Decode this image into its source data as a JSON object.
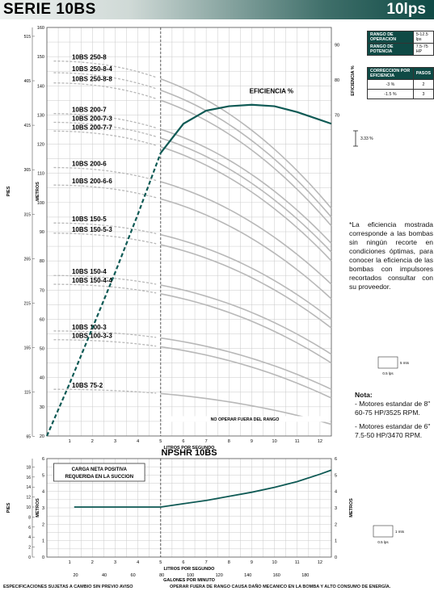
{
  "header": {
    "series": "SERIE 10BS",
    "flow": "10lps"
  },
  "table_ranges": [
    {
      "label": "RANGO DE OPERACION",
      "value": "5-12.5 lps"
    },
    {
      "label": "RANGO DE POTENCIA",
      "value": "7.5-75 HP"
    }
  ],
  "table_correction": {
    "headers": [
      "CORRECCION POR EFICIENCIA",
      "PASOS"
    ],
    "rows": [
      [
        "-3 %",
        "2"
      ],
      [
        "-1.5 %",
        "3"
      ]
    ]
  },
  "eff_scale_label": "3.33 %",
  "efficiency_note": "*La eficiencia mostrada corresponde a las bombas sin ningún recorte en condiciones óptimas, para conocer la eficiencia de las bombas con impulsores recortados consultar con su proveedor.",
  "scale_box_top": {
    "label_v": "5 mts",
    "label_h": "0.5 lps"
  },
  "scale_box_bottom": {
    "label_v": "1 mts",
    "label_h": "0.5 lps"
  },
  "nota": {
    "title": "Nota:",
    "lines": [
      "- Motores estandar de 8\" 60-75 HP/3525 RPM.",
      "- Motores estandar de 6\" 7.5-50 HP/3470 RPM."
    ]
  },
  "footer": {
    "left": "ESPECIFICACIONES SUJETAS A CAMBIO SIN PREVIO AVISO",
    "right": "OPERAR FUERA DE RANGO CAUSA DAÑO MECANICO EN LA BOMBA Y ALTO CONSUMO DE ENERGÍA."
  },
  "chart_data": [
    {
      "type": "line",
      "xlabel": "LITROS POR SEGUNDO",
      "ylabel_left": "METROS",
      "ylabel_outer": "PIES",
      "ylabel_right": "EFICIENCIA %",
      "xlim": [
        0,
        12.5
      ],
      "ylim": [
        20,
        160
      ],
      "x_ticks": [
        1,
        2,
        3,
        4,
        5,
        6,
        7,
        8,
        9,
        10,
        11,
        12
      ],
      "y_ticks": [
        20,
        30,
        40,
        50,
        60,
        70,
        80,
        90,
        100,
        110,
        120,
        130,
        140,
        150,
        160
      ],
      "feet_ticks": [
        65,
        115,
        165,
        215,
        265,
        315,
        365,
        415,
        465,
        515
      ],
      "eff_ticks": [
        {
          "value": 90,
          "y": 154
        },
        {
          "value": 80,
          "y": 142
        },
        {
          "value": 70,
          "y": 130
        }
      ],
      "annotation_range": "NO OPERAR FUERA DEL RANGO",
      "eff_label": "EFICIENCIA %",
      "min_flow_line": 5,
      "series": [
        {
          "name": "10BS 250-8",
          "shutoff": 148.5,
          "end": 98
        },
        {
          "name": "10BS 250-8-4",
          "shutoff": 144.5,
          "end": 95
        },
        {
          "name": "10BS 250-8-8",
          "shutoff": 141,
          "end": 92
        },
        {
          "name": "10BS 200-7",
          "shutoff": 130.5,
          "end": 86
        },
        {
          "name": "10BS 200-7-3",
          "shutoff": 127.5,
          "end": 83
        },
        {
          "name": "10BS 200-7-7",
          "shutoff": 124.5,
          "end": 80
        },
        {
          "name": "10BS 200-6",
          "shutoff": 112,
          "end": 72
        },
        {
          "name": "10BS 200-6-6",
          "shutoff": 106,
          "end": 67
        },
        {
          "name": "10BS 150-5",
          "shutoff": 93,
          "end": 60
        },
        {
          "name": "10BS 150-5-3",
          "shutoff": 89.5,
          "end": 57
        },
        {
          "name": "10BS 150-4",
          "shutoff": 75,
          "end": 48
        },
        {
          "name": "10BS 150-4-4",
          "shutoff": 72,
          "end": 45
        },
        {
          "name": "10BS 100-3",
          "shutoff": 56,
          "end": 36
        },
        {
          "name": "10BS 100-3-3",
          "shutoff": 53,
          "end": 33
        },
        {
          "name": "10BS 75-2",
          "shutoff": 36,
          "end": 24
        }
      ],
      "efficiency": [
        {
          "x": 0,
          "y": 20
        },
        {
          "x": 1,
          "y": 38
        },
        {
          "x": 2,
          "y": 57
        },
        {
          "x": 3,
          "y": 76
        },
        {
          "x": 4,
          "y": 96
        },
        {
          "x": 5,
          "y": 117
        },
        {
          "x": 6,
          "y": 127
        },
        {
          "x": 7,
          "y": 131.5
        },
        {
          "x": 8,
          "y": 133
        },
        {
          "x": 9,
          "y": 133.5
        },
        {
          "x": 10,
          "y": 133
        },
        {
          "x": 11,
          "y": 131
        },
        {
          "x": 12.5,
          "y": 127
        }
      ]
    },
    {
      "type": "line",
      "title": "NPSHR 10BS",
      "xlabel": "LITROS POR SEGUNDO",
      "x2label": "GALONES POR MINUTO",
      "ylabel_left": "METROS",
      "ylabel_outer": "PIES",
      "ylabel_right": "METROS",
      "box_label": [
        "CARGA NETA POSITIVA",
        "REQUERIDA EN LA SUCCION"
      ],
      "xlim": [
        0,
        12.5
      ],
      "ylim": [
        0,
        6
      ],
      "x_ticks": [
        1,
        2,
        3,
        4,
        5,
        6,
        7,
        8,
        9,
        10,
        11,
        12
      ],
      "y_ticks": [
        0,
        1,
        2,
        3,
        4,
        5,
        6
      ],
      "feet_ticks": [
        0,
        2,
        4,
        6,
        8,
        10,
        12,
        14,
        16,
        18
      ],
      "gpm_ticks": [
        20,
        40,
        60,
        80,
        100,
        120,
        140,
        160,
        180
      ],
      "npsh": [
        {
          "x": 1.2,
          "y": 3.05
        },
        {
          "x": 5,
          "y": 3.05
        },
        {
          "x": 6,
          "y": 3.25
        },
        {
          "x": 7,
          "y": 3.45
        },
        {
          "x": 8,
          "y": 3.7
        },
        {
          "x": 9,
          "y": 3.95
        },
        {
          "x": 10,
          "y": 4.25
        },
        {
          "x": 11,
          "y": 4.6
        },
        {
          "x": 12,
          "y": 5.05
        },
        {
          "x": 12.5,
          "y": 5.3
        }
      ]
    }
  ]
}
